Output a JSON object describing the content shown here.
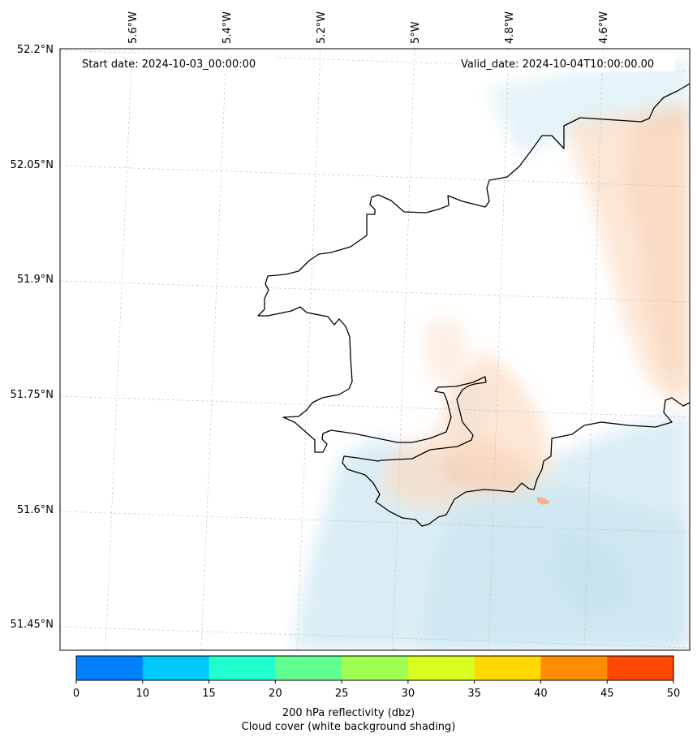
{
  "annotations": {
    "start_date": "Start date: 2024-10-03_00:00:00",
    "valid_date": "Valid_date: 2024-10-04T10:00:00.00"
  },
  "axes": {
    "lon_labels": [
      "5.6°W",
      "5.4°W",
      "5.2°W",
      "5°W",
      "4.8°W",
      "4.6°W"
    ],
    "lat_labels": [
      "52.2°N",
      "52.05°N",
      "51.9°N",
      "51.75°N",
      "51.6°N",
      "51.45°N"
    ]
  },
  "colorbar": {
    "ticks": [
      "0",
      "10",
      "15",
      "20",
      "25",
      "30",
      "35",
      "40",
      "45",
      "50"
    ],
    "colors": [
      "#0080ff",
      "#00c8ff",
      "#20ffd0",
      "#60ff90",
      "#a0ff50",
      "#d8ff20",
      "#ffd800",
      "#ff8c00",
      "#ff4800"
    ],
    "label_line1": "200 hPa reflectivity (dbz)",
    "label_line2": "Cloud cover (white background shading)"
  },
  "palette": {
    "cloud": "#c8e4ee",
    "warm": "#f7c9a5",
    "coast": "#000000"
  }
}
